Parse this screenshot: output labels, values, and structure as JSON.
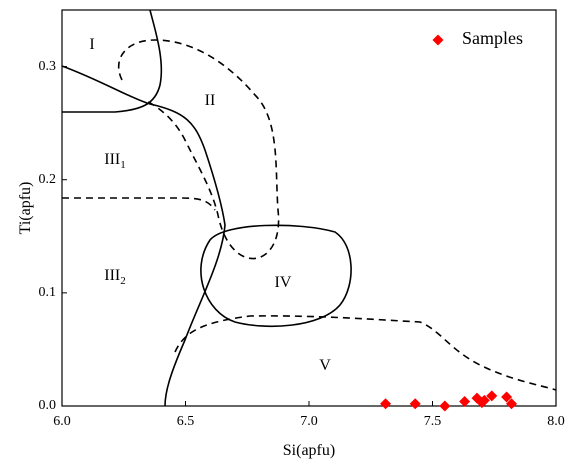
{
  "chart_data": {
    "type": "scatter",
    "xlabel": "Si(apfu)",
    "ylabel": "Ti(apfu)",
    "xlim": [
      6,
      8
    ],
    "ylim": [
      0,
      0.35
    ],
    "xticks": [
      {
        "value": 6,
        "label": "6.0"
      },
      6.5,
      {
        "value": 7,
        "label": "7.0"
      },
      7.5,
      {
        "value": 8,
        "label": "8.0"
      }
    ],
    "yticks": [
      {
        "value": 0,
        "label": "0.0"
      },
      0.1,
      0.2,
      0.3
    ],
    "legend": "upper right",
    "series": [
      {
        "name": "Samples",
        "color": "#ff0000",
        "x": [
          7.31,
          7.43,
          7.55,
          7.63,
          7.68,
          7.7,
          7.71,
          7.74,
          7.8,
          7.82
        ],
        "values": [
          0.002,
          0.002,
          0.0,
          0.004,
          0.007,
          0.003,
          0.005,
          0.009,
          0.008,
          0.002
        ]
      }
    ],
    "regions": [
      {
        "text": "I"
      },
      {
        "text": "II"
      },
      {
        "text": "III",
        "sub": "1"
      },
      {
        "text": "III",
        "sub": "2"
      },
      {
        "text": "IV"
      },
      {
        "text": "V"
      }
    ]
  }
}
